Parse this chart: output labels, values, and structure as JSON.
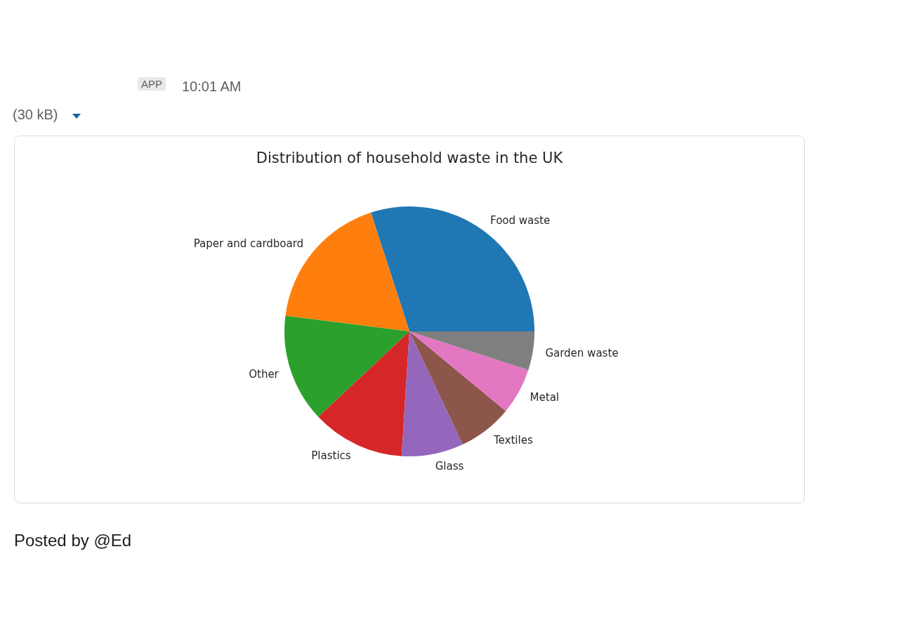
{
  "chart_data": {
    "type": "pie",
    "title": "Distribution of household waste in the UK",
    "categories": [
      "Food waste",
      "Paper and cardboard",
      "Other",
      "Plastics",
      "Glass",
      "Textiles",
      "Metal",
      "Garden waste"
    ],
    "values": [
      30,
      18,
      14,
      12,
      8,
      7,
      6,
      5
    ],
    "colors": [
      "#1f77b4",
      "#ff7f0e",
      "#2ca02c",
      "#d62728",
      "#9467bd",
      "#8c564b",
      "#e377c2",
      "#7f7f7f"
    ],
    "legend": false,
    "annotations": [
      "APP",
      "10:01 AM",
      "(30 kB)",
      "Posted by @Ed"
    ]
  }
}
